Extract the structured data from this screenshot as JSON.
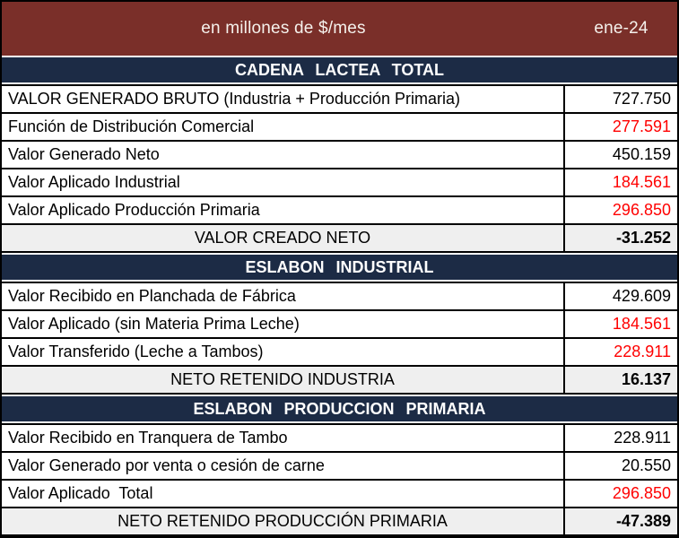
{
  "colors": {
    "header_bg": "#7A2F29",
    "header_text": "#F5F1EC",
    "section_bg": "#1C2B45",
    "section_text": "#FFFFFF",
    "row_bg": "#FFFFFF",
    "summary_bg": "#EFEFEF",
    "border": "#000000",
    "text": "#000000",
    "value_red": "#FF0000"
  },
  "chart_data": {
    "type": "table",
    "title": "en millones de $/mes",
    "period": "ene-24",
    "sections": [
      {
        "title": "CADENA LACTEA TOTAL",
        "rows": [
          {
            "label": "VALOR GENERADO BRUTO (Industria + Producción Primaria)",
            "value": "727.750",
            "color": "black"
          },
          {
            "label": "Función de Distribución Comercial",
            "value": "277.591",
            "color": "red"
          },
          {
            "label": "Valor Generado Neto",
            "value": "450.159",
            "color": "black"
          },
          {
            "label": "Valor Aplicado Industrial",
            "value": "184.561",
            "color": "red"
          },
          {
            "label": "Valor Aplicado Producción Primaria",
            "value": "296.850",
            "color": "red"
          }
        ],
        "summary": {
          "label": "VALOR CREADO NETO",
          "value": "-31.252",
          "color": "black"
        }
      },
      {
        "title": "ESLABON INDUSTRIAL",
        "rows": [
          {
            "label": "Valor Recibido en Planchada de Fábrica",
            "value": "429.609",
            "color": "black"
          },
          {
            "label": "Valor Aplicado (sin Materia Prima Leche)",
            "value": "184.561",
            "color": "red"
          },
          {
            "label": "Valor Transferido (Leche a Tambos)",
            "value": "228.911",
            "color": "red"
          }
        ],
        "summary": {
          "label": "NETO RETENIDO INDUSTRIA",
          "value": "16.137",
          "color": "black"
        }
      },
      {
        "title": "ESLABON PRODUCCION PRIMARIA",
        "rows": [
          {
            "label": "Valor Recibido en Tranquera de Tambo",
            "value": "228.911",
            "color": "black"
          },
          {
            "label": "Valor Generado por venta o cesión de carne",
            "value": "20.550",
            "color": "black"
          },
          {
            "label": "Valor Aplicado  Total",
            "value": "296.850",
            "color": "red"
          }
        ],
        "summary": {
          "label": "NETO RETENIDO PRODUCCIÓN PRIMARIA",
          "value": "-47.389",
          "color": "black"
        }
      }
    ]
  }
}
